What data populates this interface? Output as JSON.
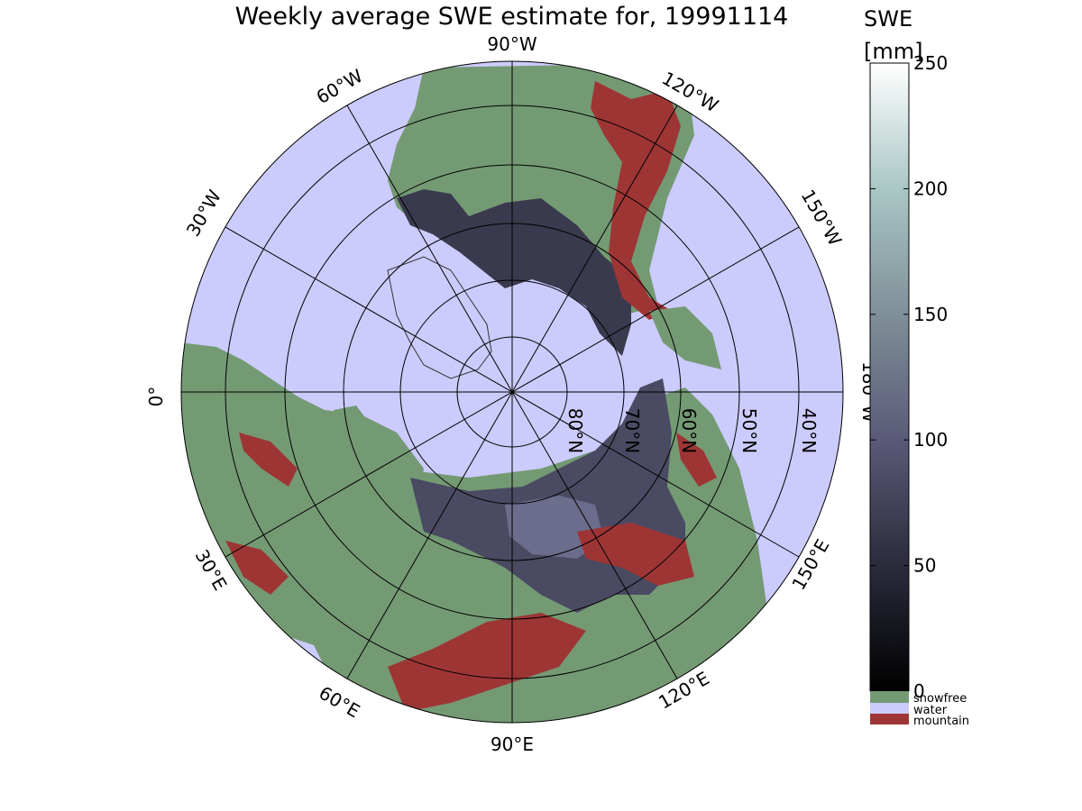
{
  "title": "Weekly average SWE estimate for, 19991114",
  "colorbar": {
    "label_line1": "SWE",
    "label_line2": "[mm]",
    "ticks": [
      "0",
      "50",
      "100",
      "150",
      "200",
      "250"
    ],
    "tick_values": [
      0,
      50,
      100,
      150,
      200,
      250
    ],
    "range": [
      0,
      250
    ],
    "categories": [
      {
        "label": "snowfree",
        "color": "#749a74"
      },
      {
        "label": "water",
        "color": "#cccbfd"
      },
      {
        "label": "mountain",
        "color": "#9e3535"
      }
    ]
  },
  "map": {
    "projection": "north polar stereographic",
    "longitude_labels": {
      "lon_90w": "90°W",
      "lon_120w": "120°W",
      "lon_150w": "150°W",
      "lon_180w": "180°W",
      "lon_150e": "150°E",
      "lon_120e": "120°E",
      "lon_90e": "90°E",
      "lon_60e": "60°E",
      "lon_30e": "30°E",
      "lon_0": "0°",
      "lon_30w": "30°W",
      "lon_60w": "60°W"
    },
    "latitude_labels": [
      "80°N",
      "70°N",
      "60°N",
      "50°N",
      "40°N"
    ],
    "colors": {
      "water": "#cccbfd",
      "snowfree": "#749a74",
      "mountain": "#9e3535",
      "snow_dark": "#2a2a38",
      "snow_mid": "#4a4a62",
      "snow_light": "#6c6c8c"
    }
  }
}
